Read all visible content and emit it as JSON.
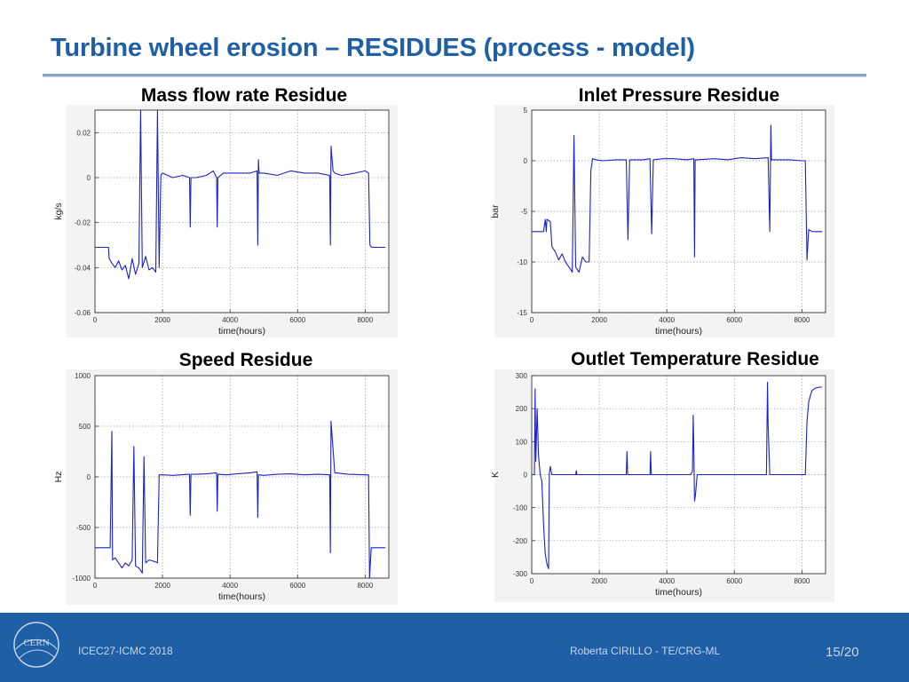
{
  "slide": {
    "title": "Turbine wheel erosion – RESIDUES (process - model)"
  },
  "footer": {
    "conference": "ICEC27-ICMC 2018",
    "author": "Roberta CIRILLO - TE/CRG-ML",
    "page": "15/20",
    "logo_text": "CERN"
  },
  "colors": {
    "title": "#1f5fa6",
    "footer_bg": "#1f5fa6",
    "series": "#1a22c8"
  },
  "chart_data": [
    {
      "type": "line",
      "title": "Mass flow rate Residue",
      "xlabel": "time(hours)",
      "ylabel": "kg/s",
      "xlim": [
        0,
        8700
      ],
      "ylim": [
        -0.06,
        0.03
      ],
      "xticks": [
        0,
        2000,
        4000,
        6000,
        8000
      ],
      "xtick_labels": [
        "0",
        "2000",
        "4000",
        "6000",
        "8000"
      ],
      "yticks": [
        -0.06,
        -0.04,
        -0.02,
        0,
        0.02
      ],
      "ytick_labels": [
        "-0.06",
        "-0.04",
        "-0.02",
        "0",
        "0.02"
      ],
      "grid": true,
      "series": [
        {
          "name": "residue",
          "x": [
            0,
            400,
            420,
            500,
            600,
            700,
            800,
            900,
            1000,
            1100,
            1200,
            1300,
            1350,
            1400,
            1500,
            1600,
            1700,
            1800,
            1850,
            1900,
            1950,
            2000,
            2300,
            2600,
            2800,
            2820,
            2840,
            3000,
            3300,
            3500,
            3600,
            3620,
            3640,
            3800,
            4200,
            4600,
            4800,
            4820,
            4840,
            4860,
            5000,
            5400,
            5800,
            6200,
            6600,
            6950,
            6970,
            6990,
            7050,
            7100,
            7300,
            7700,
            8000,
            8100,
            8140,
            8200,
            8600
          ],
          "y": [
            -0.031,
            -0.031,
            -0.036,
            -0.038,
            -0.04,
            -0.037,
            -0.041,
            -0.039,
            -0.045,
            -0.036,
            -0.043,
            -0.038,
            0.03,
            -0.04,
            -0.035,
            -0.041,
            -0.04,
            -0.042,
            0.03,
            -0.04,
            0.001,
            0.002,
            0.0,
            0.001,
            0.0,
            -0.022,
            0.0,
            0.0,
            0.001,
            0.003,
            0.0,
            -0.022,
            0.0,
            0.002,
            0.002,
            0.002,
            0.003,
            -0.03,
            0.008,
            0.002,
            0.002,
            0.001,
            0.003,
            0.002,
            0.002,
            0.001,
            -0.03,
            0.014,
            0.003,
            0.002,
            0.001,
            0.002,
            0.003,
            0.002,
            -0.03,
            -0.031,
            -0.031
          ]
        }
      ]
    },
    {
      "type": "line",
      "title": "Inlet Pressure Residue",
      "xlabel": "time(hours)",
      "ylabel": "bar",
      "xlim": [
        0,
        8700
      ],
      "ylim": [
        -15,
        5
      ],
      "xticks": [
        0,
        2000,
        4000,
        6000,
        8000
      ],
      "xtick_labels": [
        "0",
        "2000",
        "4000",
        "6000",
        "8000"
      ],
      "yticks": [
        -15,
        -10,
        -5,
        0,
        5
      ],
      "ytick_labels": [
        "-15",
        "-10",
        "-5",
        "0",
        "5"
      ],
      "grid": true,
      "series": [
        {
          "name": "residue",
          "x": [
            0,
            350,
            400,
            430,
            450,
            550,
            600,
            700,
            800,
            900,
            1000,
            1100,
            1200,
            1250,
            1300,
            1400,
            1500,
            1600,
            1700,
            1750,
            1800,
            1900,
            2100,
            2500,
            2800,
            2850,
            2900,
            3300,
            3500,
            3550,
            3600,
            3900,
            4200,
            4600,
            4800,
            4820,
            4840,
            4900,
            5400,
            5800,
            6200,
            6600,
            7000,
            7050,
            7080,
            7100,
            7200,
            7600,
            8000,
            8100,
            8150,
            8200,
            8300,
            8600
          ],
          "y": [
            -7,
            -7,
            -5.8,
            -7,
            -5.8,
            -6,
            -8.5,
            -9,
            -9.8,
            -9.2,
            -10,
            -10.5,
            -11,
            2.5,
            -10.5,
            -11,
            -9.5,
            -10,
            -10,
            -1,
            0.2,
            0.1,
            0.0,
            0.1,
            0.1,
            -7.8,
            0.1,
            0.1,
            0.2,
            -7.2,
            0.1,
            0.2,
            0.2,
            0.1,
            0.2,
            -9.5,
            0.1,
            0.1,
            0.2,
            0.1,
            0.3,
            0.2,
            0.3,
            -7,
            3.5,
            0.1,
            0.1,
            0.1,
            0.0,
            0.0,
            -9.8,
            -6.8,
            -7,
            -7
          ]
        }
      ]
    },
    {
      "type": "line",
      "title": "Speed Residue",
      "xlabel": "time(hours)",
      "ylabel": "Hz",
      "xlim": [
        0,
        8700
      ],
      "ylim": [
        -1000,
        1000
      ],
      "xticks": [
        0,
        2000,
        4000,
        6000,
        8000
      ],
      "xtick_labels": [
        "0",
        "2000",
        "4000",
        "6000",
        "8000"
      ],
      "yticks": [
        -1000,
        -500,
        0,
        500,
        1000
      ],
      "ytick_labels": [
        "-1000",
        "-500",
        "0",
        "500",
        "1000"
      ],
      "grid": true,
      "series": [
        {
          "name": "residue",
          "x": [
            0,
            450,
            500,
            520,
            600,
            700,
            800,
            900,
            1000,
            1100,
            1150,
            1200,
            1300,
            1400,
            1450,
            1500,
            1600,
            1700,
            1800,
            1850,
            1900,
            2000,
            2300,
            2800,
            2820,
            2840,
            3000,
            3300,
            3600,
            3620,
            3640,
            3900,
            4200,
            4600,
            4800,
            4820,
            4840,
            5000,
            5400,
            5800,
            6200,
            6600,
            6950,
            6970,
            6990,
            7100,
            7500,
            8000,
            8100,
            8130,
            8180,
            8600
          ],
          "y": [
            -700,
            -700,
            450,
            -820,
            -800,
            -850,
            -900,
            -850,
            -880,
            -820,
            300,
            -880,
            -900,
            -950,
            200,
            -850,
            -820,
            -830,
            -840,
            -850,
            20,
            20,
            15,
            25,
            -380,
            25,
            25,
            30,
            40,
            -340,
            25,
            20,
            30,
            40,
            50,
            -400,
            20,
            15,
            25,
            30,
            20,
            25,
            20,
            -750,
            550,
            40,
            25,
            20,
            20,
            -1000,
            -700,
            -700
          ]
        }
      ]
    },
    {
      "type": "line",
      "title": "Outlet Temperature Residue",
      "xlabel": "time(hours)",
      "ylabel": "K",
      "xlim": [
        0,
        8700
      ],
      "ylim": [
        -300,
        300
      ],
      "xticks": [
        0,
        2000,
        4000,
        6000,
        8000
      ],
      "xtick_labels": [
        "0",
        "2000",
        "4000",
        "6000",
        "8000"
      ],
      "yticks": [
        -300,
        -200,
        -100,
        0,
        100,
        200,
        300
      ],
      "ytick_labels": [
        "-300",
        "-200",
        "-100",
        "0",
        "100",
        "200",
        "300"
      ],
      "grid": true,
      "series": [
        {
          "name": "residue",
          "x": [
            0,
            80,
            100,
            120,
            160,
            200,
            250,
            300,
            350,
            400,
            450,
            500,
            520,
            550,
            600,
            800,
            1300,
            1320,
            1340,
            2000,
            2500,
            2800,
            2820,
            2840,
            3500,
            3520,
            3540,
            4600,
            4700,
            4760,
            4780,
            4800,
            4820,
            4850,
            4900,
            5500,
            6000,
            6500,
            6950,
            6980,
            7000,
            7050,
            7500,
            8000,
            8100,
            8150,
            8200,
            8250,
            8300,
            8400,
            8500,
            8600
          ],
          "y": [
            0,
            0,
            260,
            40,
            200,
            60,
            0,
            -20,
            -150,
            -240,
            -270,
            -285,
            0,
            25,
            0,
            0,
            0,
            12,
            0,
            0,
            0,
            0,
            70,
            0,
            0,
            70,
            0,
            0,
            0,
            10,
            180,
            80,
            -80,
            -60,
            0,
            0,
            0,
            0,
            0,
            280,
            150,
            0,
            0,
            0,
            0,
            160,
            220,
            240,
            255,
            262,
            265,
            265
          ]
        }
      ]
    }
  ]
}
